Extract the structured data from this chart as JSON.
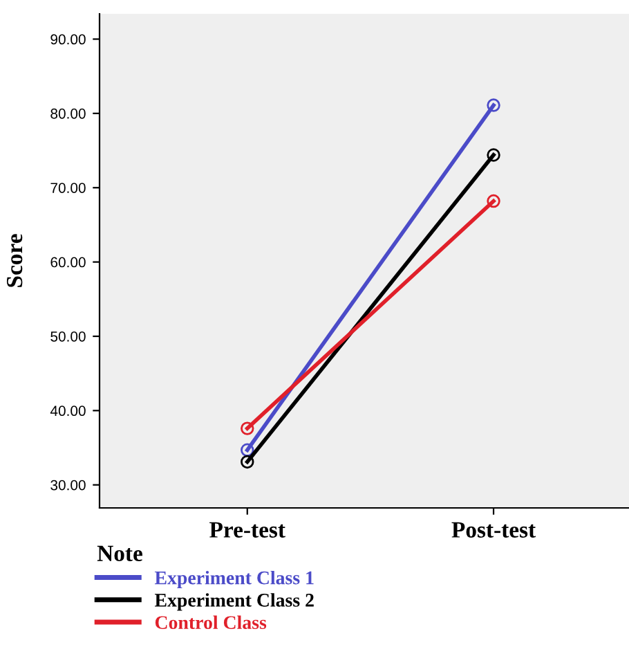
{
  "chart_data": {
    "type": "line",
    "ylabel": "Score",
    "legend_title": "Note",
    "categories": [
      "Pre-test",
      "Post-test"
    ],
    "series": [
      {
        "name": "Experiment Class 1",
        "color": "#4b4bc8",
        "values": [
          34.7,
          81.1
        ]
      },
      {
        "name": "Experiment Class 2",
        "color": "#000000",
        "values": [
          33.1,
          74.4
        ]
      },
      {
        "name": "Control Class",
        "color": "#e0202a",
        "values": [
          37.6,
          68.2
        ]
      }
    ],
    "ylim": [
      26.9,
      93.4
    ],
    "yticks": [
      {
        "value": 30,
        "label": "30.00"
      },
      {
        "value": 40,
        "label": "40.00"
      },
      {
        "value": 50,
        "label": "50.00"
      },
      {
        "value": 60,
        "label": "60.00"
      },
      {
        "value": 70,
        "label": "70.00"
      },
      {
        "value": 80,
        "label": "80.00"
      },
      {
        "value": 90,
        "label": "90.00"
      }
    ],
    "marker": "circle",
    "legend": "bottom",
    "grid": false
  }
}
